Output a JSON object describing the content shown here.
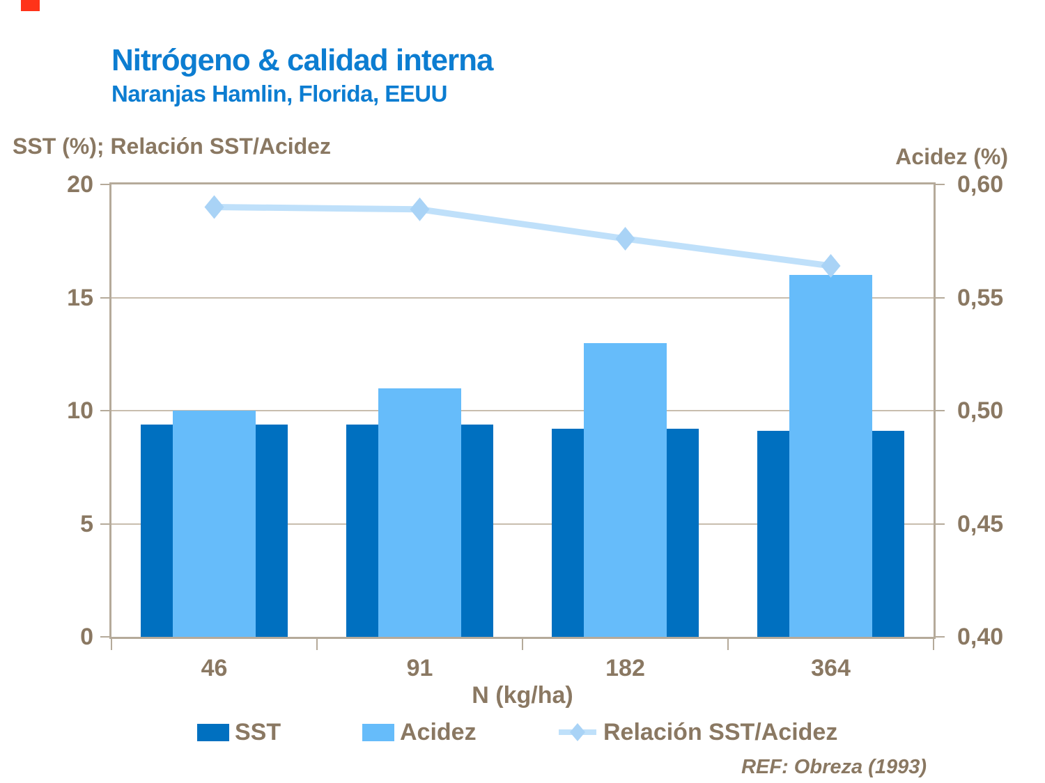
{
  "slide": {
    "ref": "REF: Obreza (1993)"
  },
  "chart_data": {
    "type": "combo-bar-line",
    "title": "Nitrógeno & calidad interna",
    "subtitle": "Naranjas Hamlin, Florida, EEUU",
    "categories": [
      "46",
      "91",
      "182",
      "364"
    ],
    "x_axis_title": "N (kg/ha)",
    "left_axis": {
      "title": "SST (%); Relación SST/Acidez",
      "ticks": [
        "20",
        "15",
        "10",
        "5",
        "0"
      ],
      "range": [
        0,
        20
      ]
    },
    "right_axis": {
      "title": "Acidez (%)",
      "ticks": [
        "0,60",
        "0,55",
        "0,50",
        "0,45",
        "0,40"
      ],
      "range": [
        0.4,
        0.6
      ]
    },
    "series": [
      {
        "name": "SST",
        "type": "bar",
        "axis": "left",
        "color": "#0070C0",
        "values": [
          9.4,
          9.4,
          9.2,
          9.1
        ]
      },
      {
        "name": "Acidez",
        "type": "bar",
        "axis": "right",
        "color": "#66BCFA",
        "values": [
          0.5,
          0.51,
          0.53,
          0.56
        ]
      },
      {
        "name": "Relación SST/Acidez",
        "type": "line",
        "axis": "left",
        "color": "#BFE0FA",
        "marker": "diamond",
        "marker_color": "#A9D3F6",
        "values": [
          19.0,
          18.9,
          17.6,
          16.4
        ]
      }
    ],
    "legend_position": "bottom",
    "grid": true
  },
  "colors": {
    "title_blue": "#0C7DD1",
    "text_brown": "#8A7862",
    "grid": "#C8BDAE",
    "axis": "#B5AA9A",
    "corner_marker_red": "#FF3319",
    "background": "#FFFFFF"
  }
}
